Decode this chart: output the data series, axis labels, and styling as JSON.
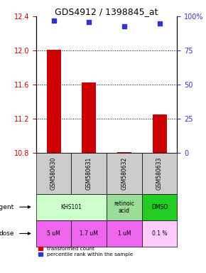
{
  "title": "GDS4912 / 1398845_at",
  "samples": [
    "GSM580630",
    "GSM580631",
    "GSM580632",
    "GSM580633"
  ],
  "bar_values": [
    12.01,
    11.63,
    10.815,
    11.25
  ],
  "bar_base": 10.8,
  "blue_values": [
    97,
    96,
    93,
    95
  ],
  "ylim": [
    10.8,
    12.4
  ],
  "yticks": [
    10.8,
    11.2,
    11.6,
    12.0,
    12.4
  ],
  "right_yticks": [
    0,
    25,
    50,
    75,
    100
  ],
  "right_ylabels": [
    "0",
    "25",
    "50",
    "75",
    "100%"
  ],
  "agent_info": [
    {
      "cols": [
        0,
        1
      ],
      "label": "KHS101",
      "color": "#ccffcc"
    },
    {
      "cols": [
        2,
        2
      ],
      "label": "retinoic\nacid",
      "color": "#99dd99"
    },
    {
      "cols": [
        3,
        3
      ],
      "label": "DMSO",
      "color": "#22cc22"
    }
  ],
  "dose_colors": [
    "#ee66ee",
    "#ee66ee",
    "#ee66ee",
    "#ffccff"
  ],
  "dose_labels": [
    "5 uM",
    "1.7 uM",
    "1 uM",
    "0.1 %"
  ],
  "bar_color": "#cc0000",
  "blue_color": "#3333cc",
  "legend_bar_label": "transformed count",
  "legend_blue_label": "percentile rank within the sample",
  "label_color_left": "#cc0000",
  "label_color_right": "#3333cc",
  "title_fontsize": 9,
  "tick_fontsize": 7,
  "sample_color": "#cccccc",
  "n_cols": 4
}
